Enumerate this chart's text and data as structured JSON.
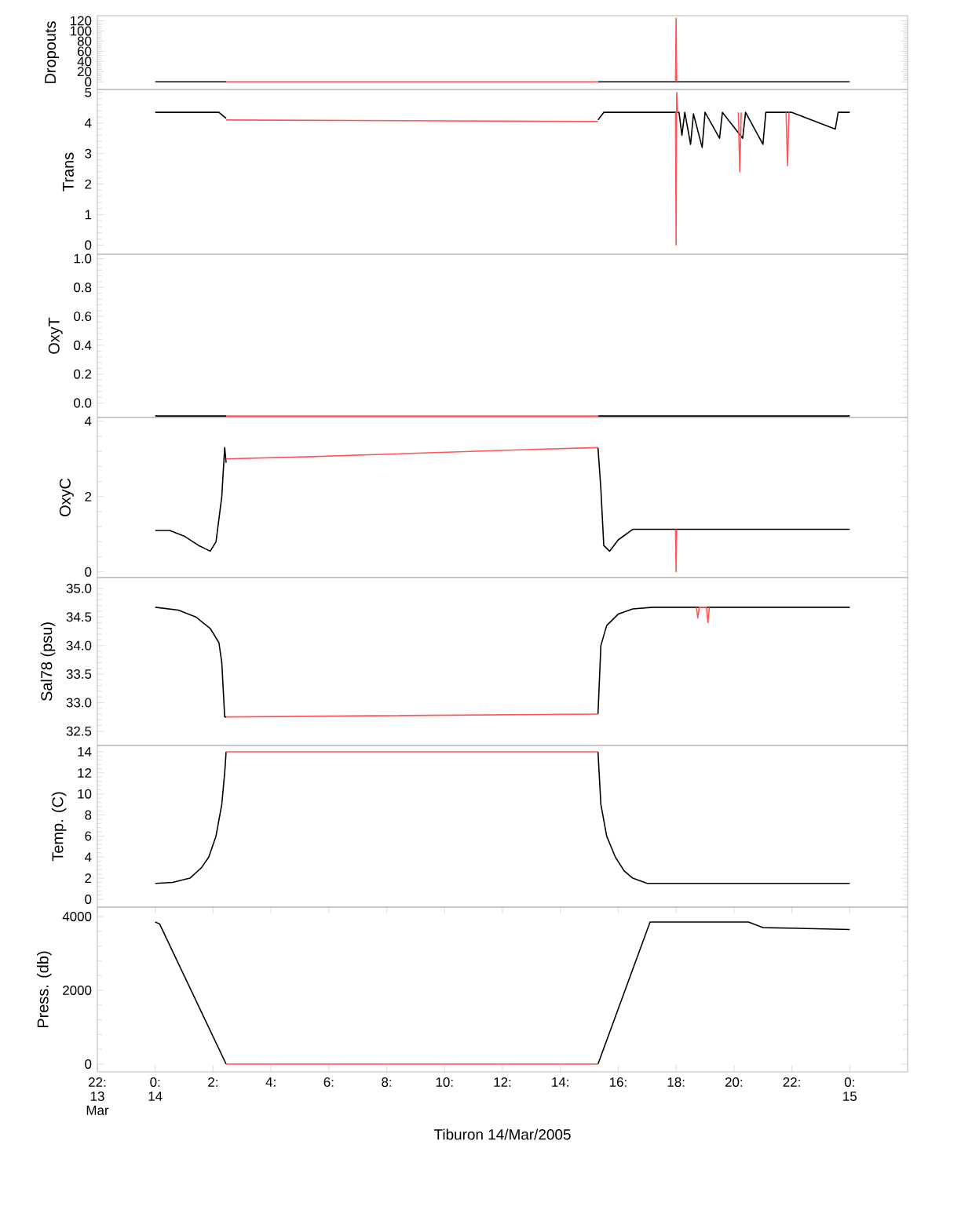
{
  "chart_data": [
    {
      "type": "line",
      "ylabel": "Dropouts",
      "xlim": [
        -2,
        26
      ],
      "ylim": [
        -15,
        130
      ],
      "yticks": [
        0,
        20,
        40,
        60,
        80,
        100,
        120
      ],
      "tick_labels": "y",
      "series": [
        {
          "color": "#000000",
          "x": [
            0,
            2.45,
            2.5,
            15.3,
            24
          ],
          "values": [
            0,
            0,
            null,
            0,
            0
          ]
        },
        {
          "color": "#ff5555",
          "x": [
            2.45,
            15.3,
            15.4,
            17.98,
            18.0,
            18.02
          ],
          "values": [
            0,
            0,
            null,
            0,
            125,
            0
          ]
        }
      ]
    },
    {
      "type": "line",
      "ylabel": "Trans",
      "xlim": [
        -2,
        26
      ],
      "ylim": [
        -0.3,
        5.1
      ],
      "yticks": [
        0,
        1,
        2,
        3,
        4,
        5
      ],
      "tick_labels": "y",
      "series": [
        {
          "color": "#000000",
          "x": [
            0,
            2.2,
            2.45,
            2.5,
            15.3,
            15.5,
            18.1,
            18.2,
            18.3,
            18.5,
            18.6,
            18.9,
            19.0,
            19.5,
            19.6,
            20.3,
            20.4,
            21.0,
            21.1,
            22.0,
            23.5,
            23.6,
            24
          ],
          "values": [
            4.35,
            4.35,
            4.15,
            null,
            4.1,
            4.35,
            4.35,
            3.6,
            4.35,
            3.3,
            4.3,
            3.2,
            4.35,
            3.5,
            4.35,
            3.5,
            4.35,
            3.3,
            4.35,
            4.35,
            3.8,
            4.35,
            4.35
          ]
        },
        {
          "color": "#ff5555",
          "x": [
            2.45,
            15.3,
            15.4,
            17.98,
            18.0,
            18.02,
            18.05,
            18.1,
            20.15,
            20.2,
            20.25,
            20.3,
            21.8,
            21.85,
            21.9
          ],
          "values": [
            4.1,
            4.05,
            null,
            4.35,
            0,
            5.0,
            4.35,
            null,
            4.35,
            2.4,
            4.35,
            null,
            4.35,
            2.6,
            4.35
          ]
        }
      ]
    },
    {
      "type": "line",
      "ylabel": "OxyT",
      "xlim": [
        -2,
        26
      ],
      "ylim": [
        -0.1,
        1.03
      ],
      "yticks": [
        {
          "value": 0,
          "label": "0.0"
        },
        {
          "value": 0.2,
          "label": "0.2"
        },
        {
          "value": 0.4,
          "label": "0.4"
        },
        {
          "value": 0.6,
          "label": "0.6"
        },
        {
          "value": 0.8,
          "label": "0.8"
        },
        {
          "value": 1,
          "label": "1.0"
        }
      ],
      "tick_labels": "y",
      "series": [
        {
          "color": "#000000",
          "x": [
            0,
            2.45,
            2.5,
            15.3,
            24
          ],
          "values": [
            -0.09,
            -0.09,
            null,
            -0.09,
            -0.09
          ]
        },
        {
          "color": "#ff5555",
          "x": [
            2.45,
            15.3
          ],
          "values": [
            -0.09,
            -0.09
          ]
        }
      ]
    },
    {
      "type": "line",
      "ylabel": "OxyC",
      "xlim": [
        -2,
        26
      ],
      "ylim": [
        -0.15,
        4.1
      ],
      "yticks": [
        0,
        2,
        4
      ],
      "tick_labels": "y",
      "series": [
        {
          "color": "#000000",
          "x": [
            0,
            0.5,
            1.0,
            1.5,
            1.9,
            2.1,
            2.3,
            2.4,
            2.45,
            2.5,
            15.3,
            15.4,
            15.5,
            15.7,
            16.0,
            16.5,
            17,
            24
          ],
          "values": [
            1.1,
            1.1,
            0.95,
            0.7,
            0.55,
            0.8,
            2.0,
            3.3,
            2.9,
            null,
            3.3,
            2.2,
            0.7,
            0.55,
            0.85,
            1.13,
            1.13,
            1.13
          ]
        },
        {
          "color": "#ff5555",
          "x": [
            2.45,
            5,
            9,
            13,
            15.3,
            15.4,
            17.98,
            18.0,
            18.02
          ],
          "values": [
            3.0,
            3.05,
            3.15,
            3.25,
            3.3,
            null,
            1.13,
            0,
            1.13
          ]
        }
      ]
    },
    {
      "type": "line",
      "ylabel": "Sal78 (psu)",
      "xlim": [
        -2,
        26
      ],
      "ylim": [
        32.25,
        35.19
      ],
      "yticks": [
        {
          "value": 32.5,
          "label": "32.5"
        },
        {
          "value": 33,
          "label": "33.0"
        },
        {
          "value": 33.5,
          "label": "33.5"
        },
        {
          "value": 34,
          "label": "34.0"
        },
        {
          "value": 34.5,
          "label": "34.5"
        },
        {
          "value": 35,
          "label": "35.0"
        }
      ],
      "tick_labels": "y",
      "series": [
        {
          "color": "#000000",
          "x": [
            0,
            0.8,
            1.4,
            1.9,
            2.2,
            2.3,
            2.4,
            2.45,
            2.5,
            15.3,
            15.4,
            15.6,
            16.0,
            16.5,
            17.2,
            24
          ],
          "values": [
            34.67,
            34.62,
            34.5,
            34.3,
            34.05,
            33.7,
            32.75,
            32.75,
            null,
            32.8,
            34.0,
            34.35,
            34.55,
            34.64,
            34.67,
            34.67
          ]
        },
        {
          "color": "#ff5555",
          "x": [
            2.45,
            15.3,
            15.4,
            18.7,
            18.75,
            18.8,
            19.05,
            19.1,
            19.15
          ],
          "values": [
            32.75,
            32.8,
            null,
            34.67,
            34.48,
            34.67,
            34.67,
            34.4,
            34.67
          ]
        }
      ]
    },
    {
      "type": "line",
      "ylabel": "Temp. (C)",
      "xlim": [
        -2,
        26
      ],
      "ylim": [
        -0.75,
        14.6
      ],
      "yticks": [
        0,
        2,
        4,
        6,
        8,
        10,
        12,
        14
      ],
      "tick_labels": "y",
      "series": [
        {
          "color": "#000000",
          "x": [
            0,
            0.6,
            1.2,
            1.6,
            1.85,
            2.1,
            2.3,
            2.4,
            2.45,
            2.5,
            15.3,
            15.4,
            15.6,
            15.9,
            16.2,
            16.5,
            17.0,
            24
          ],
          "values": [
            1.5,
            1.6,
            2.0,
            3.0,
            4.0,
            6.0,
            9.0,
            12.0,
            14.0,
            null,
            14.0,
            9.0,
            6.0,
            4.0,
            2.7,
            2.0,
            1.5,
            1.5
          ]
        },
        {
          "color": "#ff5555",
          "x": [
            2.45,
            15.3
          ],
          "values": [
            14.0,
            14.0
          ]
        }
      ]
    },
    {
      "type": "line",
      "ylabel": "Press. (db)",
      "xlabel": "Tiburon 14/Mar/2005",
      "xlim": [
        -2,
        26
      ],
      "ylim": [
        -213,
        4255
      ],
      "yticks": [
        0,
        2000,
        4000
      ],
      "xticks": [
        {
          "value": -2,
          "label": "22: 13 Mar"
        },
        {
          "value": 0,
          "label": "0: 14"
        },
        {
          "value": 2,
          "label": "2:"
        },
        {
          "value": 4,
          "label": "4:"
        },
        {
          "value": 6,
          "label": "6:"
        },
        {
          "value": 8,
          "label": "8:"
        },
        {
          "value": 10,
          "label": "10:"
        },
        {
          "value": 12,
          "label": "12:"
        },
        {
          "value": 14,
          "label": "14:"
        },
        {
          "value": 16,
          "label": "16:"
        },
        {
          "value": 18,
          "label": "18:"
        },
        {
          "value": 20,
          "label": "20:"
        },
        {
          "value": 22,
          "label": "22:"
        },
        {
          "value": 24,
          "label": "0: 15"
        }
      ],
      "series": [
        {
          "color": "#000000",
          "x": [
            0,
            0.15,
            2.45,
            2.5,
            15.3,
            17.1,
            18.0,
            20.5,
            21.0,
            24
          ],
          "values": [
            3850,
            3800,
            0,
            null,
            0,
            3850,
            3850,
            3850,
            3700,
            3650
          ]
        },
        {
          "color": "#ff5555",
          "x": [
            2.45,
            15.3
          ],
          "values": [
            0,
            0
          ]
        }
      ]
    }
  ]
}
